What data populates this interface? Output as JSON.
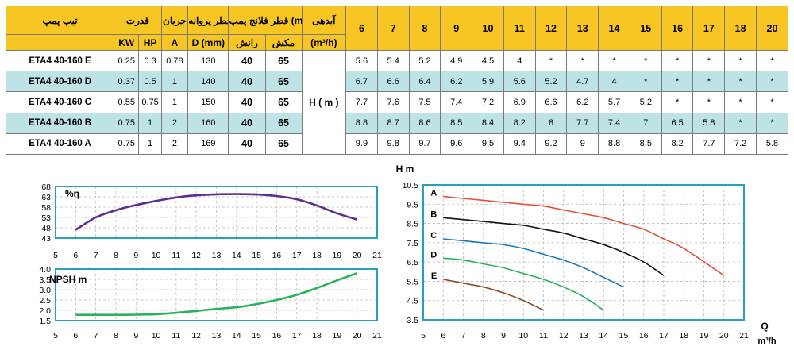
{
  "table": {
    "headers": {
      "pump_type": "تیپ پمپ",
      "power": "قدرت",
      "current": "جریان",
      "impeller_dia": "قطر پروانه",
      "flange_dia": "قطر فلانج پمپ (mm)",
      "flow": "آبدهی",
      "kw": "KW",
      "hp": "HP",
      "a": "A",
      "d_mm": "D (mm)",
      "suction": "رانش",
      "discharge": "مکش",
      "flow_unit": "(m³/h)",
      "flows": [
        "6",
        "7",
        "8",
        "9",
        "10",
        "11",
        "12",
        "13",
        "14",
        "15",
        "16",
        "17",
        "18",
        "20"
      ]
    },
    "head_unit": "H ( m )",
    "rows": [
      {
        "name": "ETA4 40-160 E",
        "kw": "0.25",
        "hp": "0.3",
        "a": "0.78",
        "d": "130",
        "s": "40",
        "m": "65",
        "heads": [
          "5.6",
          "5.4",
          "5.2",
          "4.9",
          "4.5",
          "4",
          "*",
          "*",
          "*",
          "*",
          "*",
          "*",
          "*",
          "*"
        ]
      },
      {
        "name": "ETA4 40-160 D",
        "kw": "0.37",
        "hp": "0.5",
        "a": "1",
        "d": "140",
        "s": "40",
        "m": "65",
        "heads": [
          "6.7",
          "6.6",
          "6.4",
          "6.2",
          "5.9",
          "5.6",
          "5.2",
          "4.7",
          "4",
          "*",
          "*",
          "*",
          "*",
          "*"
        ]
      },
      {
        "name": "ETA4 40-160 C",
        "kw": "0.55",
        "hp": "0.75",
        "a": "1",
        "d": "150",
        "s": "40",
        "m": "65",
        "heads": [
          "7.7",
          "7.6",
          "7.5",
          "7.4",
          "7.2",
          "6.9",
          "6.6",
          "6.2",
          "5.7",
          "5.2",
          "*",
          "*",
          "*",
          "*"
        ]
      },
      {
        "name": "ETA4 40-160 B",
        "kw": "0.75",
        "hp": "1",
        "a": "2",
        "d": "160",
        "s": "40",
        "m": "65",
        "heads": [
          "8.8",
          "8.7",
          "8.6",
          "8.5",
          "8.4",
          "8.2",
          "8",
          "7.7",
          "7.4",
          "7",
          "6.5",
          "5.8",
          "*",
          "*"
        ]
      },
      {
        "name": "ETA4 40-160 A",
        "kw": "0.75",
        "hp": "1",
        "a": "2",
        "d": "169",
        "s": "40",
        "m": "65",
        "heads": [
          "9.9",
          "9.8",
          "9.7",
          "9.6",
          "9.5",
          "9.4",
          "9.2",
          "9",
          "8.8",
          "8.5",
          "8.2",
          "7.7",
          "7.2",
          "5.8"
        ]
      }
    ]
  },
  "chart_data": [
    {
      "type": "line",
      "title": "%η",
      "xlim": [
        5,
        21
      ],
      "ylim": [
        43,
        68
      ],
      "xticks": [
        5,
        6,
        7,
        8,
        9,
        10,
        11,
        12,
        13,
        14,
        15,
        16,
        17,
        18,
        19,
        20,
        21
      ],
      "yticks": [
        43,
        48,
        53,
        58,
        63,
        68
      ],
      "color": "#5b2d8e",
      "series": [
        {
          "x": [
            6,
            7,
            8,
            9,
            10,
            11,
            12,
            13,
            14,
            15,
            16,
            17,
            18,
            19,
            20
          ],
          "y": [
            47,
            53,
            56.5,
            59,
            61,
            62.7,
            63.7,
            64.2,
            64.3,
            64.1,
            63.4,
            61.8,
            58.8,
            55,
            52
          ]
        }
      ]
    },
    {
      "type": "line",
      "title": "NPSH m",
      "xlim": [
        5,
        21
      ],
      "ylim": [
        1.5,
        4.0
      ],
      "xticks": [
        5,
        6,
        7,
        8,
        9,
        10,
        11,
        12,
        13,
        14,
        15,
        16,
        17,
        18,
        19,
        20,
        21
      ],
      "yticks": [
        "1.5",
        "2.0",
        "2.5",
        "3.0",
        "3.5",
        "4.0"
      ],
      "color": "#29b35a",
      "series": [
        {
          "x": [
            6,
            7,
            8,
            9,
            10,
            11,
            12,
            13,
            14,
            15,
            16,
            17,
            18,
            19,
            20
          ],
          "y": [
            1.78,
            1.78,
            1.78,
            1.79,
            1.81,
            1.88,
            1.97,
            2.07,
            2.15,
            2.3,
            2.5,
            2.75,
            3.08,
            3.45,
            3.8
          ]
        }
      ]
    },
    {
      "type": "line",
      "ylabel": "H m",
      "xlabel": "Q m³/h",
      "xlim": [
        5,
        21
      ],
      "ylim": [
        3.5,
        10.5
      ],
      "xticks": [
        5,
        6,
        7,
        8,
        9,
        10,
        11,
        12,
        13,
        14,
        15,
        16,
        17,
        18,
        19,
        20,
        21
      ],
      "yticks": [
        "3.5",
        "4.5",
        "5.5",
        "6.5",
        "7.5",
        "8.5",
        "9.5",
        "10.5"
      ],
      "series": [
        {
          "name": "A",
          "color": "#e0503a",
          "x": [
            6,
            7,
            8,
            9,
            10,
            11,
            12,
            13,
            14,
            15,
            16,
            17,
            18,
            20
          ],
          "y": [
            9.9,
            9.8,
            9.7,
            9.6,
            9.5,
            9.4,
            9.2,
            9.0,
            8.8,
            8.5,
            8.2,
            7.7,
            7.2,
            5.8
          ]
        },
        {
          "name": "B",
          "color": "#111111",
          "x": [
            6,
            7,
            8,
            9,
            10,
            11,
            12,
            13,
            14,
            15,
            16,
            17
          ],
          "y": [
            8.8,
            8.7,
            8.6,
            8.5,
            8.4,
            8.2,
            8.0,
            7.7,
            7.4,
            7.0,
            6.5,
            5.8
          ]
        },
        {
          "name": "C",
          "color": "#2277bb",
          "x": [
            6,
            7,
            8,
            9,
            10,
            11,
            12,
            13,
            14,
            15
          ],
          "y": [
            7.7,
            7.6,
            7.5,
            7.4,
            7.2,
            6.9,
            6.6,
            6.2,
            5.7,
            5.2
          ]
        },
        {
          "name": "D",
          "color": "#29b35a",
          "x": [
            6,
            7,
            8,
            9,
            10,
            11,
            12,
            13,
            14
          ],
          "y": [
            6.7,
            6.6,
            6.4,
            6.2,
            5.9,
            5.6,
            5.2,
            4.7,
            4.0
          ]
        },
        {
          "name": "E",
          "color": "#8a4b2a",
          "x": [
            6,
            7,
            8,
            9,
            10,
            11
          ],
          "y": [
            5.6,
            5.4,
            5.2,
            4.9,
            4.5,
            4.0
          ]
        }
      ]
    }
  ]
}
